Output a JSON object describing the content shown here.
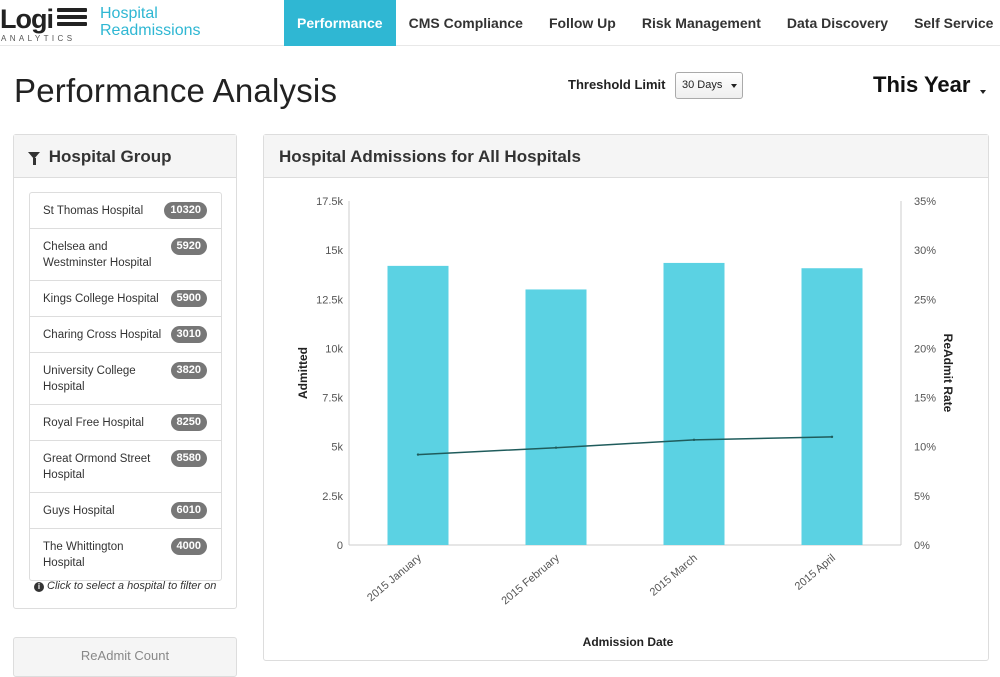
{
  "header": {
    "logo_text": "Logi",
    "logo_sub": "ANALYTICS",
    "app_title_line1": "Hospital",
    "app_title_line2": "Readmissions",
    "nav": [
      {
        "label": "Performance",
        "active": true
      },
      {
        "label": "CMS Compliance",
        "active": false
      },
      {
        "label": "Follow Up",
        "active": false
      },
      {
        "label": "Risk Management",
        "active": false
      },
      {
        "label": "Data Discovery",
        "active": false
      },
      {
        "label": "Self Service",
        "active": false
      }
    ],
    "accent_color": "#2fb7d3"
  },
  "page": {
    "title": "Performance Analysis",
    "threshold_label": "Threshold Limit",
    "threshold_value": "30 Days",
    "period": "This Year"
  },
  "hospital_group": {
    "title": "Hospital Group",
    "items": [
      {
        "name": "St Thomas Hospital",
        "count": "10320"
      },
      {
        "name": "Chelsea and Westminster Hospital",
        "count": "5920"
      },
      {
        "name": "Kings College Hospital",
        "count": "5900"
      },
      {
        "name": "Charing Cross Hospital",
        "count": "3010"
      },
      {
        "name": "University College Hospital",
        "count": "3820"
      },
      {
        "name": "Royal Free Hospital",
        "count": "8250"
      },
      {
        "name": "Great Ormond Street Hospital",
        "count": "8580"
      },
      {
        "name": "Guys Hospital",
        "count": "6010"
      },
      {
        "name": "The Whittington Hospital",
        "count": "4000"
      }
    ],
    "hint": "Click to select a hospital to filter on"
  },
  "readmit_panel": {
    "title": "ReAdmit Count"
  },
  "chart_panel": {
    "title": "Hospital Admissions for All Hospitals"
  },
  "chart_data": {
    "type": "bar",
    "categories": [
      "2015 January",
      "2015 February",
      "2015 March",
      "2015 April"
    ],
    "series": [
      {
        "kind": "bar",
        "axis": "left",
        "values": [
          14200,
          13000,
          14350,
          14080
        ],
        "color": "#5bd2e3"
      },
      {
        "kind": "line",
        "axis": "right",
        "values": [
          9.2,
          9.9,
          10.7,
          11.0
        ],
        "color": "#1f5c5c"
      }
    ],
    "xlabel": "Admission Date",
    "ylabel": "Admitted",
    "ylabel_right": "ReAdmit Rate",
    "ylim": [
      0,
      17500
    ],
    "ylim_right": [
      0,
      35
    ],
    "yticks": [
      "0",
      "2.5k",
      "5k",
      "7.5k",
      "10k",
      "12.5k",
      "15k",
      "17.5k"
    ],
    "yticks_right": [
      "0%",
      "5%",
      "10%",
      "15%",
      "20%",
      "25%",
      "30%",
      "35%"
    ],
    "grid": false,
    "legend": "none"
  }
}
